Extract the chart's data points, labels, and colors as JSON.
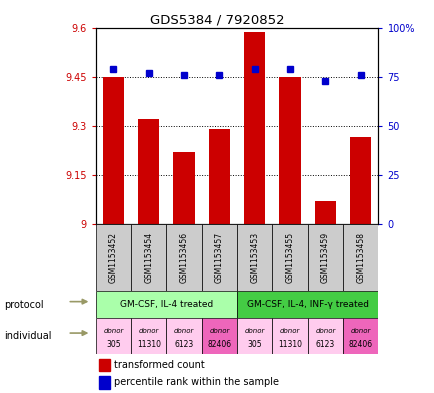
{
  "title": "GDS5384 / 7920852",
  "samples": [
    "GSM1153452",
    "GSM1153454",
    "GSM1153456",
    "GSM1153457",
    "GSM1153453",
    "GSM1153455",
    "GSM1153459",
    "GSM1153458"
  ],
  "transformed_count": [
    9.45,
    9.32,
    9.22,
    9.29,
    9.585,
    9.45,
    9.07,
    9.265
  ],
  "percentile_rank": [
    79,
    77,
    76,
    76,
    79,
    79,
    73,
    76
  ],
  "ylim_left": [
    9.0,
    9.6
  ],
  "ylim_right": [
    0,
    100
  ],
  "yticks_left": [
    9.0,
    9.15,
    9.3,
    9.45,
    9.6
  ],
  "yticks_right": [
    0,
    25,
    50,
    75,
    100
  ],
  "ytick_labels_left": [
    "9",
    "9.15",
    "9.3",
    "9.45",
    "9.6"
  ],
  "ytick_labels_right": [
    "0",
    "25",
    "50",
    "75",
    "100%"
  ],
  "bar_color": "#cc0000",
  "dot_color": "#0000cc",
  "protocol_labels": [
    "GM-CSF, IL-4 treated",
    "GM-CSF, IL-4, INF-γ treated"
  ],
  "protocol_color_light": "#aaffaa",
  "protocol_color_dark": "#44cc44",
  "individual_labels_top": [
    "donor",
    "donor",
    "donor",
    "donor",
    "donor",
    "donor",
    "donor",
    "donor"
  ],
  "individual_labels_bot": [
    "305",
    "11310",
    "6123",
    "82406",
    "305",
    "11310",
    "6123",
    "82406"
  ],
  "individual_colors": [
    "#ffccee",
    "#ffccee",
    "#ffccee",
    "#ee66bb",
    "#ffccee",
    "#ffccee",
    "#ffccee",
    "#ee66bb"
  ],
  "sample_bg_color": "#cccccc",
  "arrow_color": "#999966",
  "grid_lines": [
    9.15,
    9.3,
    9.45
  ]
}
